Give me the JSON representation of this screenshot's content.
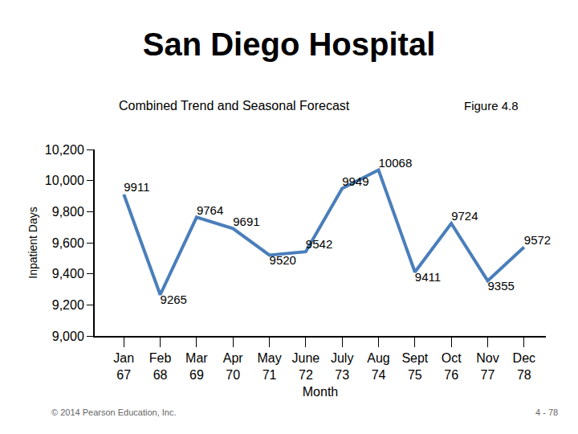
{
  "chart_data": {
    "type": "line",
    "title": "San Diego Hospital",
    "subtitle": "Combined Trend and Seasonal Forecast",
    "figure_label": "Figure 4.8",
    "footer_left": "© 2014 Pearson Education, Inc.",
    "footer_right": "4 - 78",
    "x_label": "Month",
    "y_label": "Inpatient Days",
    "categories": [
      "Jan",
      "Feb",
      "Mar",
      "Apr",
      "May",
      "June",
      "July",
      "Aug",
      "Sept",
      "Oct",
      "Nov",
      "Dec"
    ],
    "periods": [
      67,
      68,
      69,
      70,
      71,
      72,
      73,
      74,
      75,
      76,
      77,
      78
    ],
    "values": [
      9911,
      9265,
      9764,
      9691,
      9520,
      9542,
      9949,
      10068,
      9411,
      9724,
      9355,
      9572
    ],
    "color": "#4a7ebb",
    "marker": "none",
    "line_style": "solid",
    "data_labels": true,
    "grid": false,
    "ylim": [
      9000,
      10200
    ],
    "yticks": [
      {
        "value": 9000,
        "label": "9,000"
      },
      {
        "value": 9200,
        "label": "9,200"
      },
      {
        "value": 9400,
        "label": "9,400"
      },
      {
        "value": 9600,
        "label": "9,600"
      },
      {
        "value": 9800,
        "label": "9,800"
      },
      {
        "value": 10000,
        "label": "10,000"
      },
      {
        "value": 10200,
        "label": "10,200"
      }
    ]
  }
}
